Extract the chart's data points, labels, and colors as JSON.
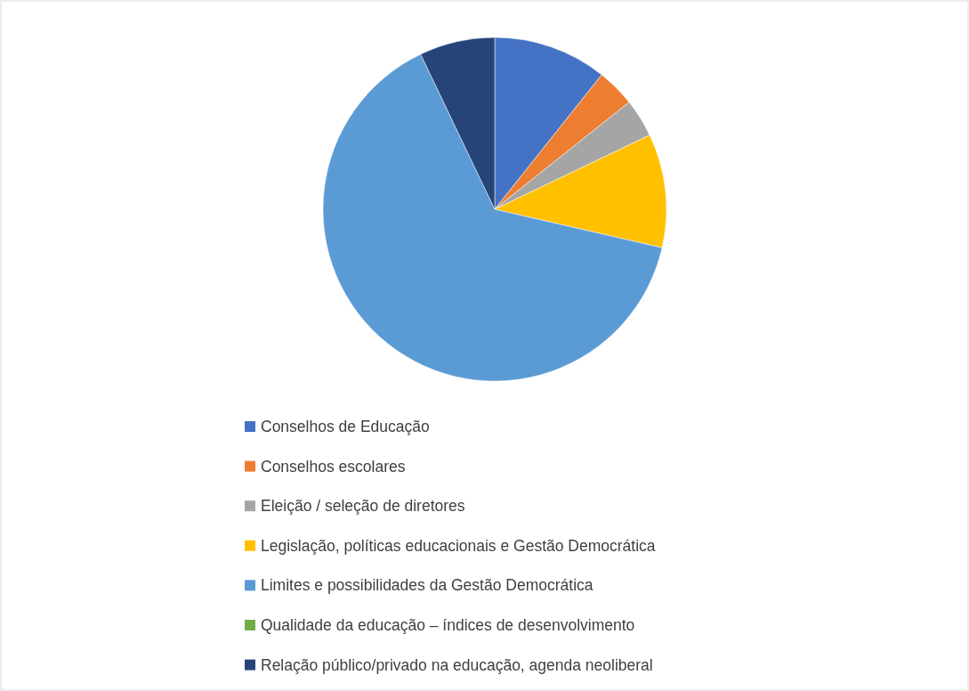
{
  "chart_data": {
    "type": "pie",
    "categories": [
      "Conselhos de Educação",
      "Conselhos escolares",
      "Eleição / seleção de diretores",
      "Legislação, políticas educacionais e Gestão Democrática",
      "Limites e possibilidades da Gestão Democrática",
      "Qualidade da educação – índices de desenvolvimento",
      "Relação público/privado na educação, agenda neoliberal"
    ],
    "values": [
      10.7,
      3.6,
      3.6,
      10.7,
      64.3,
      0,
      7.1
    ],
    "colors": [
      "#4472c4",
      "#ed7d31",
      "#a5a5a5",
      "#ffc000",
      "#5b9bd5",
      "#70ad47",
      "#264478"
    ],
    "legend": "bottom"
  }
}
